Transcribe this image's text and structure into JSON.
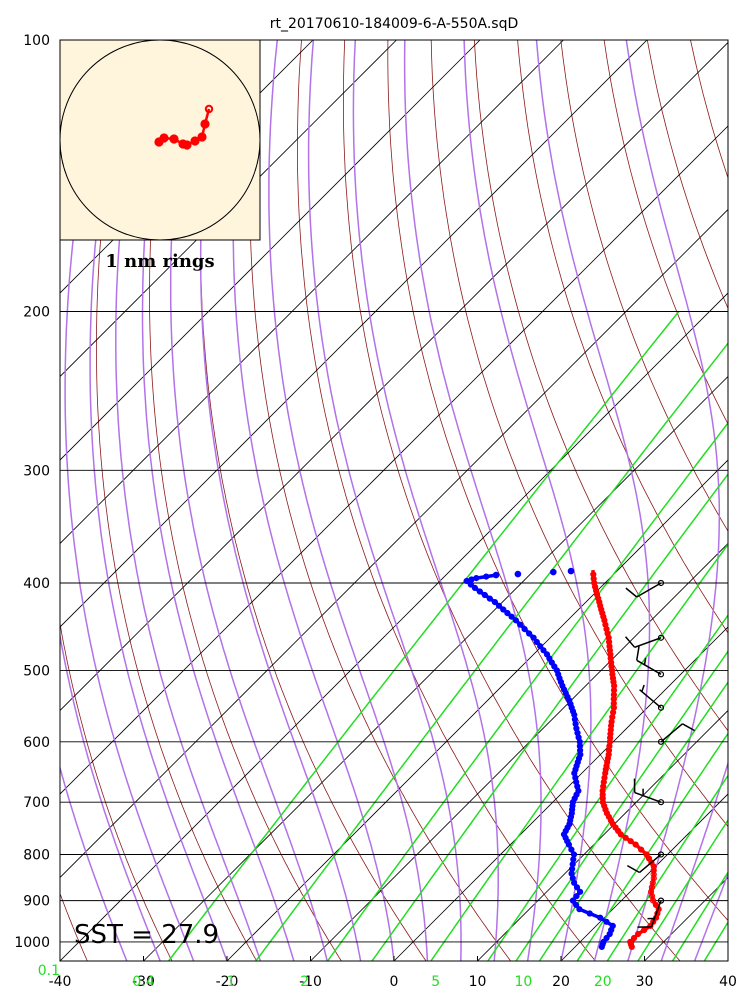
{
  "chart_data": {
    "type": "skew-t",
    "title": "rt_20170610-184009-6-A-550A.sqD",
    "pressure_ticks": [
      100,
      200,
      300,
      400,
      500,
      600,
      700,
      800,
      900,
      1000
    ],
    "pressure_range": [
      100,
      1050
    ],
    "temperature_ticks": [
      -40,
      -30,
      -20,
      -10,
      0,
      10,
      20,
      30,
      40
    ],
    "temperature_range_at_surface": [
      -40,
      40
    ],
    "mixing_ratio_labels": [
      "0.1",
      "0.4",
      "1",
      "2",
      "5",
      "10",
      "20"
    ],
    "mixing_ratio_label_temps": [
      -40,
      -30,
      -19.5,
      -10.7,
      5,
      15.5,
      25
    ],
    "sst_label": "SST = 27.9",
    "hodograph_label": "1 nm rings",
    "temperature_profile": [
      {
        "p": 1013,
        "t": 26.8
      },
      {
        "p": 1000,
        "t": 26.0
      },
      {
        "p": 980,
        "t": 26.0
      },
      {
        "p": 960,
        "t": 26.5
      },
      {
        "p": 940,
        "t": 26.2
      },
      {
        "p": 920,
        "t": 25.5
      },
      {
        "p": 900,
        "t": 23.8
      },
      {
        "p": 880,
        "t": 22.5
      },
      {
        "p": 850,
        "t": 21.2
      },
      {
        "p": 825,
        "t": 19.8
      },
      {
        "p": 800,
        "t": 17.5
      },
      {
        "p": 780,
        "t": 15.0
      },
      {
        "p": 760,
        "t": 12.0
      },
      {
        "p": 740,
        "t": 9.8
      },
      {
        "p": 720,
        "t": 7.8
      },
      {
        "p": 700,
        "t": 6.0
      },
      {
        "p": 680,
        "t": 4.6
      },
      {
        "p": 650,
        "t": 2.8
      },
      {
        "p": 620,
        "t": 1.0
      },
      {
        "p": 600,
        "t": -0.4
      },
      {
        "p": 570,
        "t": -2.6
      },
      {
        "p": 550,
        "t": -4.0
      },
      {
        "p": 520,
        "t": -6.6
      },
      {
        "p": 500,
        "t": -8.7
      },
      {
        "p": 480,
        "t": -10.8
      },
      {
        "p": 460,
        "t": -13.0
      },
      {
        "p": 440,
        "t": -15.6
      },
      {
        "p": 420,
        "t": -18.4
      },
      {
        "p": 400,
        "t": -21.3
      },
      {
        "p": 387,
        "t": -23.0
      }
    ],
    "dewpoint_profile": [
      {
        "p": 1013,
        "t": 23.2
      },
      {
        "p": 1000,
        "t": 22.8
      },
      {
        "p": 980,
        "t": 22.6
      },
      {
        "p": 960,
        "t": 22.0
      },
      {
        "p": 940,
        "t": 19.5
      },
      {
        "p": 920,
        "t": 16.0
      },
      {
        "p": 900,
        "t": 14.2
      },
      {
        "p": 880,
        "t": 14.0
      },
      {
        "p": 860,
        "t": 12.2
      },
      {
        "p": 840,
        "t": 10.8
      },
      {
        "p": 820,
        "t": 9.8
      },
      {
        "p": 800,
        "t": 8.8
      },
      {
        "p": 780,
        "t": 7.0
      },
      {
        "p": 760,
        "t": 5.2
      },
      {
        "p": 740,
        "t": 4.6
      },
      {
        "p": 720,
        "t": 3.6
      },
      {
        "p": 700,
        "t": 2.4
      },
      {
        "p": 680,
        "t": 1.7
      },
      {
        "p": 650,
        "t": -0.9
      },
      {
        "p": 620,
        "t": -2.4
      },
      {
        "p": 600,
        "t": -4.0
      },
      {
        "p": 580,
        "t": -6.0
      },
      {
        "p": 560,
        "t": -7.9
      },
      {
        "p": 540,
        "t": -10.2
      },
      {
        "p": 520,
        "t": -12.8
      },
      {
        "p": 500,
        "t": -15.3
      },
      {
        "p": 480,
        "t": -18.4
      },
      {
        "p": 460,
        "t": -22.0
      },
      {
        "p": 440,
        "t": -26.2
      },
      {
        "p": 420,
        "t": -30.9
      },
      {
        "p": 405,
        "t": -35.0
      },
      {
        "p": 398,
        "t": -36.8
      },
      {
        "p": 395,
        "t": -36.0
      },
      {
        "p": 392,
        "t": -34.0
      },
      {
        "p": 391,
        "t": -31.5
      },
      {
        "p": 389,
        "t": -27.5
      },
      {
        "p": 388,
        "t": -25.5
      }
    ],
    "wind_barbs": [
      {
        "p": 400,
        "dir": 240,
        "kt": 10
      },
      {
        "p": 460,
        "dir": 250,
        "kt": 10
      },
      {
        "p": 505,
        "dir": 300,
        "kt": 15
      },
      {
        "p": 550,
        "dir": 310,
        "kt": 5
      },
      {
        "p": 600,
        "dir": 50,
        "kt": 10
      },
      {
        "p": 700,
        "dir": 290,
        "kt": 15
      },
      {
        "p": 800,
        "dir": 230,
        "kt": 10
      },
      {
        "p": 900,
        "dir": 200,
        "kt": 15
      }
    ],
    "hodograph_track": [
      {
        "u": -0.01,
        "v": -0.02
      },
      {
        "u": 0.04,
        "v": 0.02
      },
      {
        "u": 0.14,
        "v": 0.01
      },
      {
        "u": 0.23,
        "v": -0.04
      },
      {
        "u": 0.27,
        "v": -0.05
      },
      {
        "u": 0.35,
        "v": -0.01
      },
      {
        "u": 0.42,
        "v": 0.03
      },
      {
        "u": 0.45,
        "v": 0.16
      },
      {
        "u": 0.49,
        "v": 0.31
      }
    ]
  }
}
